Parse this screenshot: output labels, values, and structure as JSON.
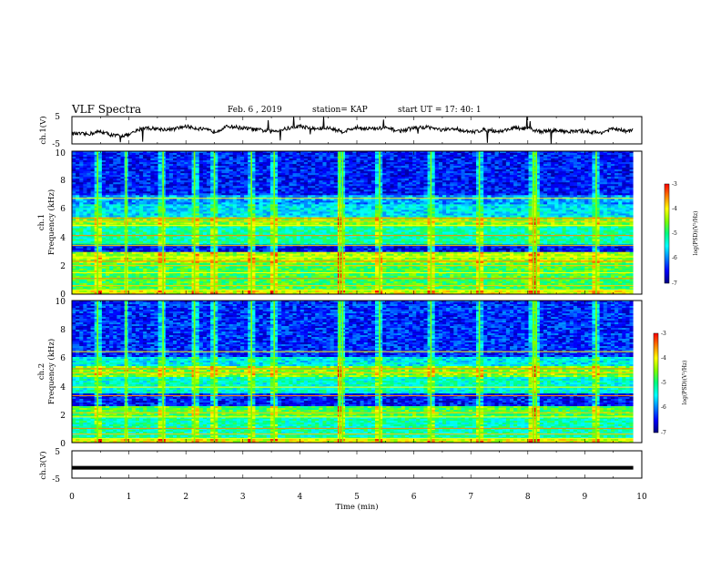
{
  "header": {
    "title": "VLF Spectra",
    "date": "Feb. 6 , 2019",
    "station": "station= KAP",
    "start": "start  UT  =   17: 40: 1"
  },
  "colors": {
    "background": "#ffffff",
    "trace": "#000000",
    "colormap": [
      "#000080",
      "#0000ff",
      "#0080ff",
      "#00ffff",
      "#00ff80",
      "#80ff00",
      "#ffff00",
      "#ff8000",
      "#ff0000",
      "#ffffff"
    ]
  },
  "chart_data": [
    {
      "id": "ch1",
      "type": "line",
      "ylabel": "ch.1(V)",
      "ylim": [
        -5,
        5
      ],
      "y_ticks": [
        "5",
        "-5"
      ],
      "xlim": [
        0,
        10
      ],
      "description_values": "noisy waveform centred near 0 V fluctuating roughly between -3 and +3 V",
      "x": [
        0,
        0.25,
        0.5,
        0.75,
        1,
        1.25,
        1.5,
        1.75,
        2,
        2.25,
        2.5,
        2.75,
        3,
        3.25,
        3.5,
        3.75,
        4,
        4.25,
        4.5,
        4.75,
        5,
        5.25,
        5.5,
        5.75,
        6,
        6.25,
        6.5,
        6.75,
        7,
        7.25,
        7.5,
        7.75,
        8,
        8.25,
        8.5,
        8.75,
        9,
        9.25,
        9.5,
        9.75,
        9.85
      ],
      "y": [
        -1.2,
        -1.5,
        -0.5,
        -2,
        -1.8,
        1,
        0.5,
        0.2,
        1.5,
        0.5,
        -0.5,
        1.5,
        0.8,
        0.2,
        -0.5,
        0.5,
        1.5,
        0.5,
        0.8,
        -0.5,
        1,
        0.5,
        0.8,
        -0.3,
        0.8,
        1.2,
        0,
        0.5,
        -0.8,
        0.3,
        -0.5,
        0.8,
        0.5,
        -0.5,
        0,
        -0.5,
        -0.3,
        -1,
        0.5,
        -0.5,
        0.5
      ]
    },
    {
      "id": "ch1-spectrogram",
      "type": "heatmap",
      "ylabel_top": "ch.1",
      "ylabel": "Frequency  (kHz)",
      "ylim": [
        0,
        10
      ],
      "y_ticks": [
        "0",
        "2",
        "4",
        "6",
        "8",
        "10"
      ],
      "xlim": [
        0,
        10
      ],
      "colorbar": {
        "label": "log(PSD)(V²/Hz)",
        "range": [
          -7,
          -3
        ],
        "ticks": [
          "-3",
          "-4",
          "-5",
          "-6",
          "-7"
        ]
      },
      "bands_khz": [
        {
          "from": 0,
          "to": 0.3,
          "level": 0.72
        },
        {
          "from": 0.3,
          "to": 2.2,
          "level": 0.55
        },
        {
          "from": 2.2,
          "to": 2.9,
          "level": 0.66
        },
        {
          "from": 2.9,
          "to": 3.5,
          "level": 0.12
        },
        {
          "from": 3.5,
          "to": 4.8,
          "level": 0.46
        },
        {
          "from": 4.8,
          "to": 5.4,
          "level": 0.62
        },
        {
          "from": 5.4,
          "to": 6.3,
          "level": 0.36
        },
        {
          "from": 6.3,
          "to": 6.9,
          "level": 0.28
        },
        {
          "from": 6.9,
          "to": 10,
          "level": 0.14
        }
      ],
      "tones_khz": [
        0.3,
        0.6,
        1.1,
        1.5,
        2.0,
        2.3,
        2.6,
        3.4,
        4.1,
        4.8,
        5.1,
        5.3,
        6.7
      ],
      "impulse_times_min": [
        0.45,
        0.95,
        1.6,
        2.15,
        2.5,
        3.15,
        3.55,
        4.7,
        4.75,
        5.4,
        6.3,
        7.15,
        8.1,
        8.15,
        9.2
      ]
    },
    {
      "id": "ch2-spectrogram",
      "type": "heatmap",
      "ylabel_top": "ch.2",
      "ylabel": "Frequency  (kHz)",
      "ylim": [
        0,
        10
      ],
      "y_ticks": [
        "0",
        "2",
        "4",
        "6",
        "8",
        "10"
      ],
      "xlim": [
        0,
        10
      ],
      "colorbar": {
        "label": "log(PSD)(V²/Hz)",
        "range": [
          -7,
          -3
        ],
        "ticks": [
          "-3",
          "-4",
          "-5",
          "-6",
          "-7"
        ]
      },
      "bands_khz": [
        {
          "from": 0,
          "to": 0.3,
          "level": 0.72
        },
        {
          "from": 0.3,
          "to": 1.8,
          "level": 0.45
        },
        {
          "from": 1.8,
          "to": 2.6,
          "level": 0.56
        },
        {
          "from": 2.6,
          "to": 3.4,
          "level": 0.14
        },
        {
          "from": 3.4,
          "to": 4.6,
          "level": 0.42
        },
        {
          "from": 4.6,
          "to": 5.4,
          "level": 0.62
        },
        {
          "from": 5.4,
          "to": 6.0,
          "level": 0.38
        },
        {
          "from": 6.0,
          "to": 10,
          "level": 0.16
        }
      ],
      "tones_khz": [
        0.3,
        0.6,
        1.0,
        1.8,
        2.1,
        3.3,
        3.9,
        4.9,
        5.2,
        6.4
      ],
      "impulse_times_min": [
        0.45,
        0.95,
        1.6,
        2.15,
        2.5,
        3.15,
        3.55,
        4.7,
        4.75,
        5.4,
        6.3,
        7.15,
        8.1,
        8.15,
        9.2
      ]
    },
    {
      "id": "ch3",
      "type": "line",
      "ylabel": "ch.3(V)",
      "ylim": [
        -5,
        5
      ],
      "y_ticks": [
        "5",
        "-5"
      ],
      "xlim": [
        0,
        10
      ],
      "xlabel": "Time  (min)",
      "x_ticks": [
        "0",
        "1",
        "2",
        "3",
        "4",
        "5",
        "6",
        "7",
        "8",
        "9",
        "10"
      ],
      "x": [
        0,
        9.85
      ],
      "y": [
        -1.2,
        -1.2
      ]
    }
  ]
}
